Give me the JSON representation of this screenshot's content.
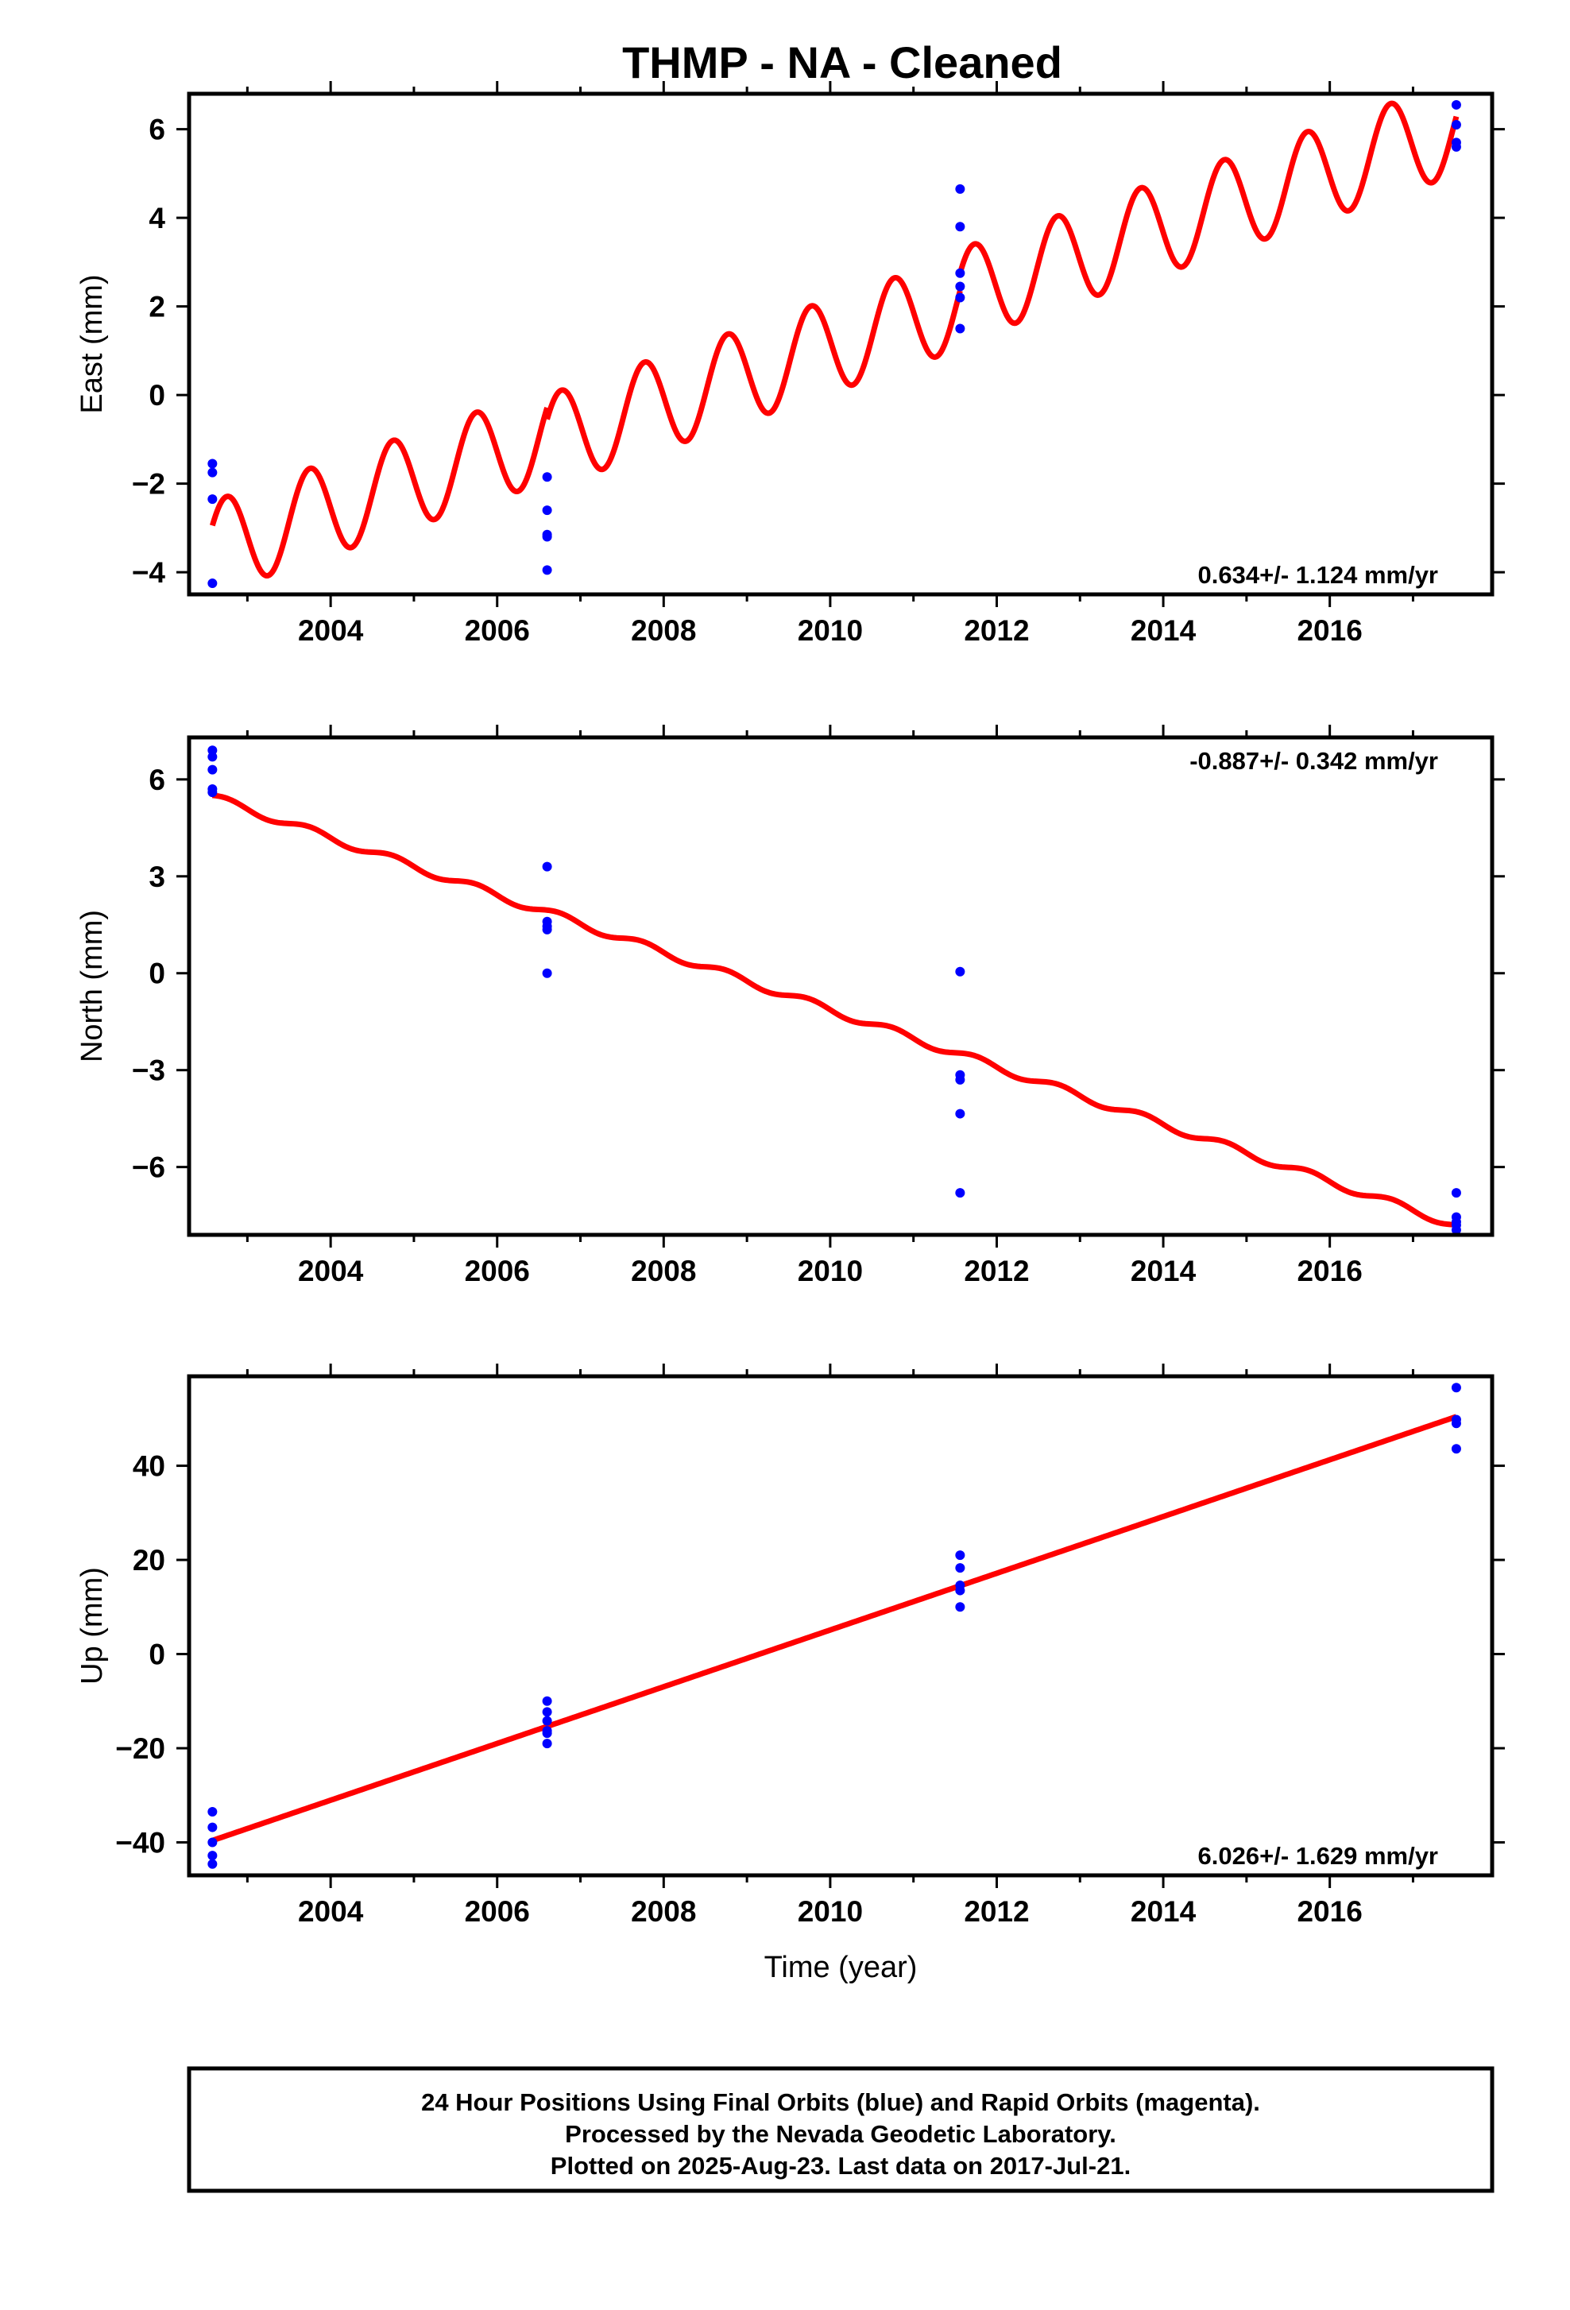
{
  "title": "THMP  - NA - Cleaned",
  "footer": [
    "24 Hour Positions Using Final Orbits (blue) and Rapid Orbits (magenta).",
    "Processed by the Nevada Geodetic Laboratory.",
    "Plotted on 2025-Aug-23. Last data on 2017-Jul-21."
  ],
  "colors": {
    "points": "#0000ff",
    "model": "#ff0000",
    "frame": "#000000"
  },
  "chart_data": [
    {
      "type": "scatter",
      "ylabel": "East (mm)",
      "xlabel": "",
      "rate_label": "0.634+/- 1.124 mm/yr",
      "rate_position": "bottom-right",
      "xlim": [
        2002.3,
        2017.95
      ],
      "ylim": [
        -4.5,
        6.8
      ],
      "xticks": [
        2004,
        2006,
        2008,
        2010,
        2012,
        2014,
        2016
      ],
      "yticks": [
        -4,
        -2,
        0,
        2,
        4,
        6
      ],
      "ytick_labels": [
        "−4",
        "−2",
        "0",
        "2",
        "4",
        "6"
      ],
      "grid": false,
      "series": [
        {
          "kind": "points",
          "x": [
            2002.58,
            2002.58,
            2002.58,
            2002.58,
            2006.6,
            2006.6,
            2006.6,
            2006.6,
            2006.6,
            2011.56,
            2011.56,
            2011.56,
            2011.56,
            2011.56,
            2011.56,
            2017.52,
            2017.52,
            2017.52,
            2017.52
          ],
          "y": [
            -1.55,
            -1.75,
            -2.35,
            -4.25,
            -1.85,
            -2.6,
            -3.15,
            -3.2,
            -3.95,
            4.65,
            3.8,
            2.75,
            2.45,
            2.2,
            1.5,
            6.55,
            6.1,
            5.7,
            5.6
          ]
        },
        {
          "kind": "model",
          "segments": [
            {
              "x0": 2002.58,
              "x1": 2006.6,
              "trend_start": -3.45,
              "rate": 0.634,
              "amplitude": 1.05,
              "phase": 0.5
            },
            {
              "x0": 2006.6,
              "x1": 2011.56,
              "trend_start": -1.05,
              "rate": 0.634,
              "amplitude": 1.05,
              "phase": 0.5
            },
            {
              "x0": 2011.56,
              "x1": 2017.52,
              "trend_start": 2.25,
              "rate": 0.634,
              "amplitude": 1.05,
              "phase": 0.5
            }
          ]
        }
      ]
    },
    {
      "type": "scatter",
      "ylabel": "North (mm)",
      "xlabel": "",
      "rate_label": "-0.887+/- 0.342 mm/yr",
      "rate_position": "top-right",
      "xlim": [
        2002.3,
        2017.95
      ],
      "ylim": [
        -8.1,
        7.3
      ],
      "xticks": [
        2004,
        2006,
        2008,
        2010,
        2012,
        2014,
        2016
      ],
      "yticks": [
        -6,
        -3,
        0,
        3,
        6
      ],
      "ytick_labels": [
        "−6",
        "−3",
        "0",
        "3",
        "6"
      ],
      "grid": false,
      "series": [
        {
          "kind": "points",
          "x": [
            2002.58,
            2002.58,
            2002.58,
            2002.58,
            2002.58,
            2006.6,
            2006.6,
            2006.6,
            2006.6,
            2006.6,
            2011.56,
            2011.56,
            2011.56,
            2011.56,
            2011.56,
            2017.52,
            2017.52,
            2017.52,
            2017.52,
            2017.52
          ],
          "y": [
            6.9,
            6.7,
            6.3,
            5.7,
            5.6,
            3.3,
            1.6,
            1.45,
            1.35,
            0.0,
            0.05,
            -3.15,
            -3.3,
            -4.35,
            -6.8,
            -6.8,
            -7.55,
            -7.7,
            -7.8,
            -7.95
          ],
          "ticks": [
            -6,
            -3,
            0,
            3,
            6
          ]
        },
        {
          "kind": "model",
          "segments": [
            {
              "x0": 2002.58,
              "x1": 2017.52,
              "trend_start": 5.45,
              "rate": -0.887,
              "amplitude": 0.12,
              "phase": 0.5
            }
          ]
        }
      ]
    },
    {
      "type": "scatter",
      "ylabel": "Up (mm)",
      "xlabel": "Time (year)",
      "rate_label": "6.026+/- 1.629 mm/yr",
      "rate_position": "bottom-right",
      "xlim": [
        2002.3,
        2017.95
      ],
      "ylim": [
        -47,
        59
      ],
      "xticks": [
        2004,
        2006,
        2008,
        2010,
        2012,
        2014,
        2016
      ],
      "yticks": [
        -40,
        -20,
        0,
        20,
        40
      ],
      "ytick_labels": [
        "−40",
        "−20",
        "0",
        "20",
        "40"
      ],
      "grid": false,
      "series": [
        {
          "kind": "points",
          "x": [
            2002.58,
            2002.58,
            2002.58,
            2002.58,
            2002.58,
            2006.6,
            2006.6,
            2006.6,
            2006.6,
            2006.6,
            2006.6,
            2011.56,
            2011.56,
            2011.56,
            2011.56,
            2011.56,
            2017.52,
            2017.52,
            2017.52,
            2017.52
          ],
          "y": [
            -33.5,
            -36.8,
            -40.0,
            -42.8,
            -44.6,
            -10.0,
            -12.3,
            -14.2,
            -16.3,
            -16.8,
            -19.0,
            21.0,
            18.3,
            14.6,
            13.5,
            10.0,
            56.6,
            49.8,
            49.0,
            43.6
          ]
        },
        {
          "kind": "model",
          "segments": [
            {
              "x0": 2002.58,
              "x1": 2017.52,
              "trend_start": -39.6,
              "rate": 6.026,
              "amplitude": 0.0,
              "phase": 0.0
            }
          ]
        }
      ]
    }
  ]
}
